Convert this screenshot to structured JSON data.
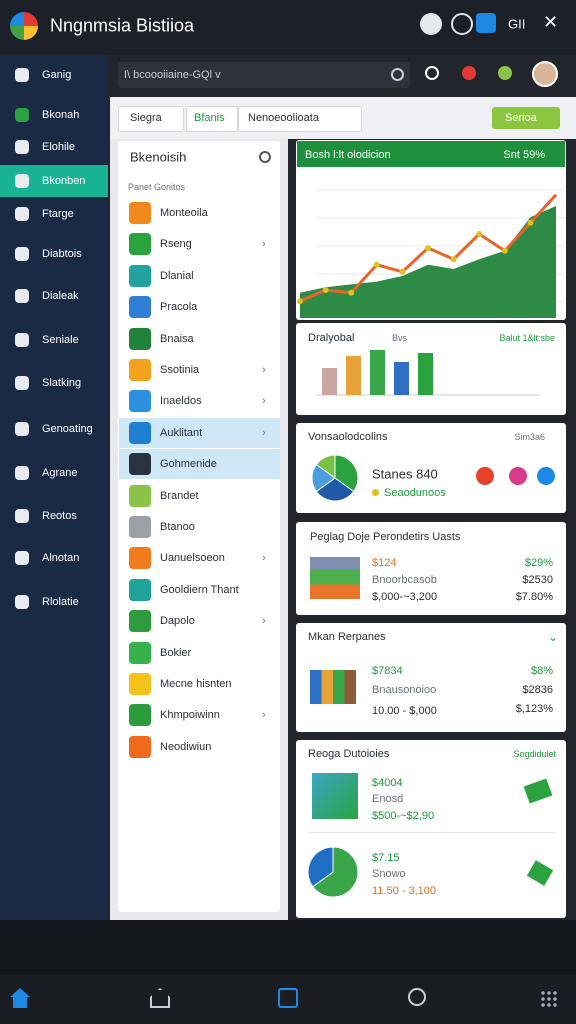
{
  "app_bar": {
    "title": "Nngnmsia Bistiioa",
    "status": "GII"
  },
  "sidebar": {
    "items": [
      "Ganig",
      "Bkonah",
      "Elohile",
      "Bkonben",
      "Ftarge",
      "Diabtois",
      "Dialeak",
      "Seniale",
      "Slatking",
      "Genoating",
      "Agrane",
      "Reotos",
      "Alnotan",
      "Rlolatie"
    ],
    "active": 3
  },
  "search": {
    "placeholder": "I\\ bcoooiiaine-GQl v"
  },
  "filters": {
    "select": "Siegra",
    "tab": "Bfanis",
    "input": "Nenoeoolioata",
    "button": "Serioa"
  },
  "list": {
    "title": "Bkenoisih",
    "section": "Panet Gonitos",
    "selected": [
      7,
      8
    ],
    "items": [
      {
        "label": "Monteoila",
        "color": "#f08a1c",
        "chevron": false
      },
      {
        "label": "Rseng",
        "color": "#2aa33f",
        "chevron": true
      },
      {
        "label": "Dlanial",
        "color": "#22a3a0",
        "chevron": false
      },
      {
        "label": "Pracola",
        "color": "#2f7fd6",
        "chevron": false
      },
      {
        "label": "Bnaisa",
        "color": "#23823a",
        "chevron": false
      },
      {
        "label": "Ssotinia",
        "color": "#f2a21c",
        "chevron": true
      },
      {
        "label": "Inaeldos",
        "color": "#2d8fe0",
        "chevron": true
      },
      {
        "label": "Auklitant",
        "color": "#1f7fd1",
        "chevron": true
      },
      {
        "label": "Gohmenide",
        "color": "#2b3340",
        "chevron": false
      },
      {
        "label": "Brandet",
        "color": "#8bc34a",
        "chevron": false
      },
      {
        "label": "Btanoo",
        "color": "#9aa0a6",
        "chevron": false
      },
      {
        "label": "Uanuelsoeon",
        "color": "#f07a1c",
        "chevron": true
      },
      {
        "label": "Gooldiern Thant",
        "color": "#1fa39a",
        "chevron": false
      },
      {
        "label": "Dapolo",
        "color": "#2e9b3e",
        "chevron": true
      },
      {
        "label": "Bokier",
        "color": "#35b34a",
        "chevron": false
      },
      {
        "label": "Mecne hisnten",
        "color": "#f4c21c",
        "chevron": false
      },
      {
        "label": "Khmpoiwinn",
        "color": "#2c9b3c",
        "chevron": true
      },
      {
        "label": "Neodiwiun",
        "color": "#ef6a1c",
        "chevron": false
      }
    ]
  },
  "trend_card": {
    "title": "Bosh l:lt olodicion",
    "badge": "Snt 59%",
    "ylim": [
      0,
      100
    ],
    "line": {
      "color": "#e8642a",
      "values": [
        12,
        20,
        18,
        38,
        33,
        50,
        42,
        60,
        48,
        68,
        88
      ]
    },
    "area": {
      "color": "#2e8b45",
      "values": [
        18,
        22,
        24,
        26,
        30,
        38,
        35,
        42,
        48,
        72,
        80
      ]
    }
  },
  "bar_card": {
    "title": "Dralyobal",
    "tag": "Bvs",
    "link": "Balut 1&lt:sbe",
    "ylim": [
      0,
      40
    ],
    "values": [
      18,
      26,
      30,
      22,
      28
    ],
    "colors": [
      "#c9a7a0",
      "#e8a23a",
      "#3aa64a",
      "#2f6fc4",
      "#2aa33f"
    ]
  },
  "pie_card": {
    "title": "Vonsaolodcolins",
    "filter": "Sim3a6",
    "headline": "Stanes 840",
    "note": "Seaodunoos",
    "values": [
      35,
      30,
      20,
      15
    ],
    "colors": [
      "#2aa33f",
      "#1e5aa8",
      "#4a9ee0",
      "#7ac143"
    ]
  },
  "price_card": {
    "title": "Peglag Doje Perondetirs Uasts",
    "price": "$124",
    "label": "Bnoorbcasob",
    "range": "$,000-~3,200",
    "stats": [
      "$29%",
      "$2530",
      "$7.80%"
    ]
  },
  "market_card": {
    "title": "Mkan Rerpanes",
    "price": "$7834",
    "label": "Bnausonoioo",
    "range": "10.00 - $,000",
    "stats": [
      "$8%",
      "$2836",
      "$,123%"
    ]
  },
  "deals_card": {
    "title": "Reoga Dutoioies",
    "link": "Sogdidulet",
    "items": [
      {
        "price": "$4004",
        "label": "Enosd",
        "range": "$500-~$2,90"
      },
      {
        "price": "$7.15",
        "label": "Snowo",
        "range": "11.50 - 3,100"
      }
    ],
    "pie": {
      "values": [
        65,
        35
      ],
      "colors": [
        "#3aa64a",
        "#1e6fc4"
      ]
    }
  }
}
